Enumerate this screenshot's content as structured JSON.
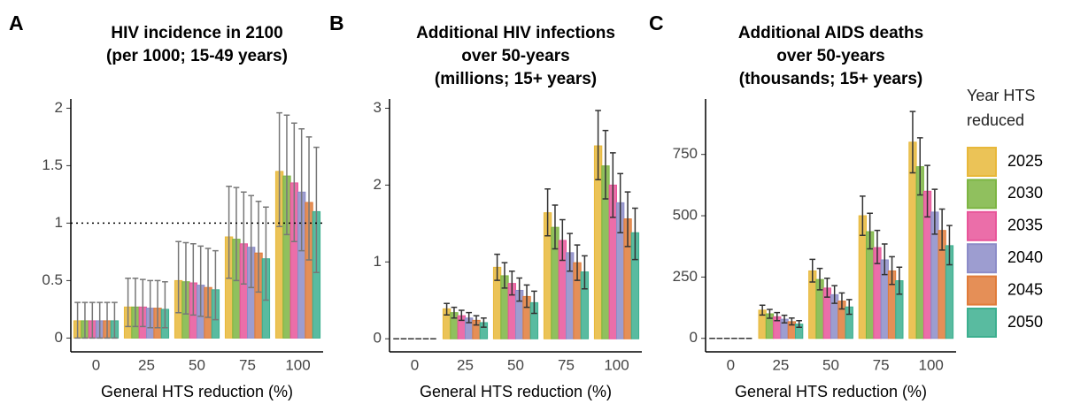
{
  "legend": {
    "title": "Year HTS reduced",
    "series": [
      {
        "name": "2025",
        "color": "#E8B83A"
      },
      {
        "name": "2030",
        "color": "#7DB542"
      },
      {
        "name": "2035",
        "color": "#E8559A"
      },
      {
        "name": "2040",
        "color": "#8C8CC8"
      },
      {
        "name": "2045",
        "color": "#E07B39"
      },
      {
        "name": "2050",
        "color": "#3CAF8F"
      }
    ]
  },
  "chart_data": [
    {
      "type": "bar",
      "panel": "A",
      "title": [
        "HIV incidence in 2100",
        "(per 1000; 15-49 years)"
      ],
      "x_label": "General HTS reduction (%)",
      "categories": [
        "0",
        "25",
        "50",
        "75",
        "100"
      ],
      "ylim": [
        -0.12,
        2.08
      ],
      "yticks": [
        0,
        0.5,
        1,
        1.5,
        2
      ],
      "hline": 1,
      "errorbar_color": "#777777",
      "series": [
        {
          "values": [
            0.15,
            0.27,
            0.5,
            0.88,
            1.45
          ],
          "lower": [
            0,
            0.1,
            0.22,
            0.52,
            0.97
          ],
          "upper": [
            0.31,
            0.52,
            0.84,
            1.32,
            1.96
          ]
        },
        {
          "values": [
            0.15,
            0.27,
            0.49,
            0.86,
            1.41
          ],
          "lower": [
            0,
            0.1,
            0.21,
            0.5,
            0.9
          ],
          "upper": [
            0.31,
            0.52,
            0.83,
            1.31,
            1.94
          ]
        },
        {
          "values": [
            0.15,
            0.27,
            0.48,
            0.82,
            1.35
          ],
          "lower": [
            0,
            0.1,
            0.2,
            0.47,
            0.84
          ],
          "upper": [
            0.31,
            0.51,
            0.82,
            1.27,
            1.87
          ]
        },
        {
          "values": [
            0.15,
            0.26,
            0.46,
            0.79,
            1.27
          ],
          "lower": [
            0,
            0.09,
            0.19,
            0.44,
            0.76
          ],
          "upper": [
            0.31,
            0.5,
            0.8,
            1.24,
            1.82
          ]
        },
        {
          "values": [
            0.15,
            0.26,
            0.44,
            0.74,
            1.18
          ],
          "lower": [
            0,
            0.09,
            0.18,
            0.4,
            0.68
          ],
          "upper": [
            0.31,
            0.5,
            0.78,
            1.19,
            1.75
          ]
        },
        {
          "values": [
            0.15,
            0.25,
            0.42,
            0.69,
            1.1
          ],
          "lower": [
            0,
            0.09,
            0.16,
            0.33,
            0.57
          ],
          "upper": [
            0.31,
            0.49,
            0.76,
            1.14,
            1.66
          ]
        }
      ]
    },
    {
      "type": "bar",
      "panel": "B",
      "title": [
        "Additional HIV infections",
        "over 50-years",
        "(millions; 15+ years)"
      ],
      "x_label": "General HTS reduction (%)",
      "categories": [
        "0",
        "25",
        "50",
        "75",
        "100"
      ],
      "ylim": [
        -0.17,
        3.12
      ],
      "yticks": [
        0,
        1,
        2,
        3
      ],
      "errorbar_color": "#333333",
      "series": [
        {
          "values": [
            0,
            0.39,
            0.93,
            1.64,
            2.51
          ],
          "lower": [
            0,
            0.31,
            0.76,
            1.34,
            2.07
          ],
          "upper": [
            0,
            0.46,
            1.1,
            1.95,
            2.97
          ]
        },
        {
          "values": [
            0,
            0.34,
            0.82,
            1.45,
            2.25
          ],
          "lower": [
            0,
            0.27,
            0.66,
            1.17,
            1.82
          ],
          "upper": [
            0,
            0.41,
            0.99,
            1.74,
            2.71
          ]
        },
        {
          "values": [
            0,
            0.3,
            0.72,
            1.28,
            2.0
          ],
          "lower": [
            0,
            0.24,
            0.57,
            1.02,
            1.58
          ],
          "upper": [
            0,
            0.37,
            0.88,
            1.55,
            2.42
          ]
        },
        {
          "values": [
            0,
            0.27,
            0.63,
            1.12,
            1.77
          ],
          "lower": [
            0,
            0.21,
            0.49,
            0.88,
            1.38
          ],
          "upper": [
            0,
            0.34,
            0.79,
            1.37,
            2.15
          ]
        },
        {
          "values": [
            0,
            0.24,
            0.55,
            0.99,
            1.56
          ],
          "lower": [
            0,
            0.18,
            0.41,
            0.76,
            1.2
          ],
          "upper": [
            0,
            0.3,
            0.7,
            1.22,
            1.91
          ]
        },
        {
          "values": [
            0,
            0.21,
            0.47,
            0.87,
            1.38
          ],
          "lower": [
            0,
            0.15,
            0.33,
            0.65,
            1.03
          ],
          "upper": [
            0,
            0.27,
            0.62,
            1.08,
            1.7
          ]
        }
      ]
    },
    {
      "type": "bar",
      "panel": "C",
      "title": [
        "Additional AIDS deaths",
        "over 50-years",
        "(thousands; 15+ years)"
      ],
      "x_label": "General HTS reduction (%)",
      "categories": [
        "0",
        "25",
        "50",
        "75",
        "100"
      ],
      "ylim": [
        -55,
        976
      ],
      "yticks": [
        0,
        250,
        500,
        750
      ],
      "errorbar_color": "#333333",
      "series": [
        {
          "values": [
            0,
            115,
            275,
            500,
            800
          ],
          "lower": [
            0,
            95,
            230,
            420,
            675
          ],
          "upper": [
            0,
            135,
            322,
            580,
            925
          ]
        },
        {
          "values": [
            0,
            100,
            240,
            435,
            700
          ],
          "lower": [
            0,
            82,
            198,
            365,
            585
          ],
          "upper": [
            0,
            118,
            285,
            510,
            818
          ]
        },
        {
          "values": [
            0,
            88,
            205,
            370,
            600
          ],
          "lower": [
            0,
            72,
            168,
            305,
            495
          ],
          "upper": [
            0,
            105,
            245,
            440,
            705
          ]
        },
        {
          "values": [
            0,
            78,
            178,
            320,
            515
          ],
          "lower": [
            0,
            63,
            143,
            260,
            425
          ],
          "upper": [
            0,
            94,
            215,
            385,
            608
          ]
        },
        {
          "values": [
            0,
            68,
            152,
            275,
            440
          ],
          "lower": [
            0,
            55,
            120,
            220,
            360
          ],
          "upper": [
            0,
            83,
            185,
            333,
            527
          ]
        },
        {
          "values": [
            0,
            58,
            128,
            235,
            378
          ],
          "lower": [
            0,
            45,
            98,
            180,
            300
          ],
          "upper": [
            0,
            72,
            158,
            290,
            460
          ]
        }
      ]
    }
  ]
}
